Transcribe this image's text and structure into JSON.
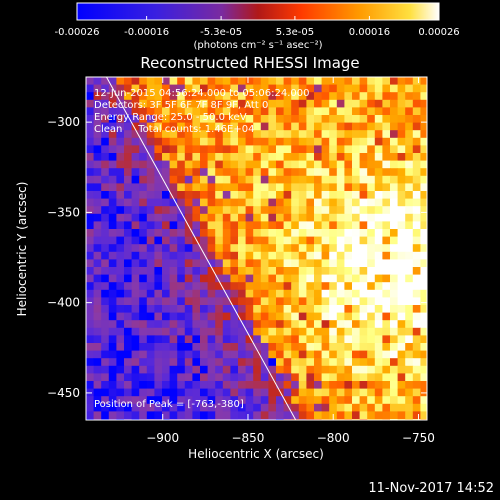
{
  "colorbar": {
    "ticks": [
      "-0.00026",
      "-0.00016",
      "-5.3e-05",
      "5.3e-05",
      "0.00016",
      "0.00026"
    ],
    "tick_values": [
      -0.00026,
      -0.00016,
      -5.3e-05,
      5.3e-05,
      0.00016,
      0.00026
    ],
    "range": [
      -0.00026,
      0.00026
    ],
    "unit_label": "(photons cm⁻² s⁻¹ asec⁻²)"
  },
  "chart_data": {
    "type": "heatmap",
    "title": "Reconstructed RHESSI Image",
    "xlabel": "Heliocentric X (arcsec)",
    "ylabel": "Heliocentric Y (arcsec)",
    "xlim": [
      -945,
      -745
    ],
    "ylim": [
      -465,
      -275
    ],
    "x_ticks": [
      -900,
      -850,
      -800,
      -750
    ],
    "y_ticks": [
      -300,
      -350,
      -400,
      -450
    ],
    "annotations": [
      "12-Jun-2015 04:56:24.000 to 05:06:24.000",
      "Detectors: 3F 5F 6F 7F 8F 9F, Att 0",
      "Energy Range: 25.0 - 50.0 keV",
      "Clean     Total counts: 1.46E+04"
    ],
    "peak_label": "Position of Peak = [-763,-380]",
    "peak": [
      -763,
      -380
    ],
    "limb_line": [
      [
        -933,
        -275
      ],
      [
        -822,
        -465
      ]
    ],
    "colormap": [
      "#0000ff",
      "#5a2ad8",
      "#8a3aa8",
      "#c4281c",
      "#ff5a00",
      "#ffb000",
      "#ffff80",
      "#ffffff"
    ]
  },
  "footer": {
    "timestamp": "11-Nov-2017 14:52"
  }
}
